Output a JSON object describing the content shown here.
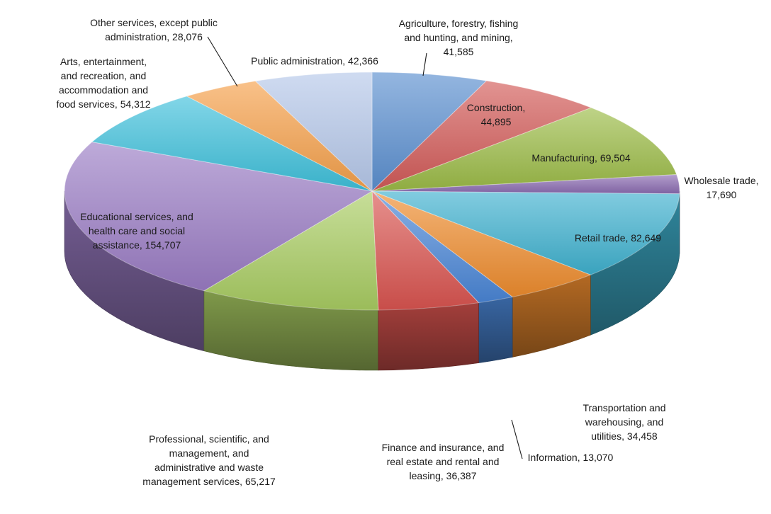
{
  "chart_data": {
    "type": "pie",
    "title": "",
    "slices": [
      {
        "name": "Agriculture, forestry, fishing and hunting, and mining",
        "value": 41585,
        "label_lines": [
          "Agriculture, forestry, fishing",
          "and hunting, and mining,",
          "41,585"
        ],
        "color": "#5b8fd0",
        "has_leader": true
      },
      {
        "name": "Construction",
        "value": 44895,
        "label_lines": [
          "Construction,",
          "44,895"
        ],
        "color": "#d25a58",
        "has_leader": false
      },
      {
        "name": "Manufacturing",
        "value": 69504,
        "label_lines": [
          "Manufacturing, 69,504"
        ],
        "color": "#9bbb47",
        "has_leader": false
      },
      {
        "name": "Wholesale trade",
        "value": 17690,
        "label_lines": [
          "Wholesale trade,",
          "17,690"
        ],
        "color": "#8a6ab0",
        "has_leader": false
      },
      {
        "name": "Retail trade",
        "value": 82649,
        "label_lines": [
          "Retail trade, 82,649"
        ],
        "color": "#3fb1cf",
        "has_leader": false
      },
      {
        "name": "Transportation and warehousing, and utilities",
        "value": 34458,
        "label_lines": [
          "Transportation and",
          "warehousing, and",
          "utilities, 34,458"
        ],
        "color": "#ee8c2e",
        "has_leader": false
      },
      {
        "name": "Information",
        "value": 13070,
        "label_lines": [
          "Information, 13,070"
        ],
        "color": "#4a86d6",
        "has_leader": true
      },
      {
        "name": "Finance and insurance, and real estate and rental and leasing",
        "value": 36387,
        "label_lines": [
          "Finance and insurance, and",
          "real estate and rental and",
          "leasing, 36,387"
        ],
        "color": "#d9544f",
        "has_leader": false
      },
      {
        "name": "Professional, scientific, and management, and administrative and waste management services",
        "value": 65217,
        "label_lines": [
          "Professional, scientific, and",
          "management, and",
          "administrative and waste",
          "management services, 65,217"
        ],
        "color": "#a9cc62",
        "has_leader": false
      },
      {
        "name": "Educational services, and health care and social assistance",
        "value": 154707,
        "label_lines": [
          "Educational services, and",
          "health care and social",
          "assistance, 154,707"
        ],
        "color": "#9a7cc4",
        "has_leader": false
      },
      {
        "name": "Arts, entertainment, and recreation, and accommodation and food services",
        "value": 54312,
        "label_lines": [
          "Arts, entertainment,",
          "and recreation, and",
          "accommodation and",
          "food services, 54,312"
        ],
        "color": "#3ec0db",
        "has_leader": false
      },
      {
        "name": "Other services, except public administration",
        "value": 28076,
        "label_lines": [
          "Other services, except public",
          "administration, 28,076"
        ],
        "color": "#f5a04a",
        "has_leader": true
      },
      {
        "name": "Public administration",
        "value": 42366,
        "label_lines": [
          "Public administration, 42,366"
        ],
        "color": "#b5c8ea",
        "has_leader": false
      }
    ]
  }
}
